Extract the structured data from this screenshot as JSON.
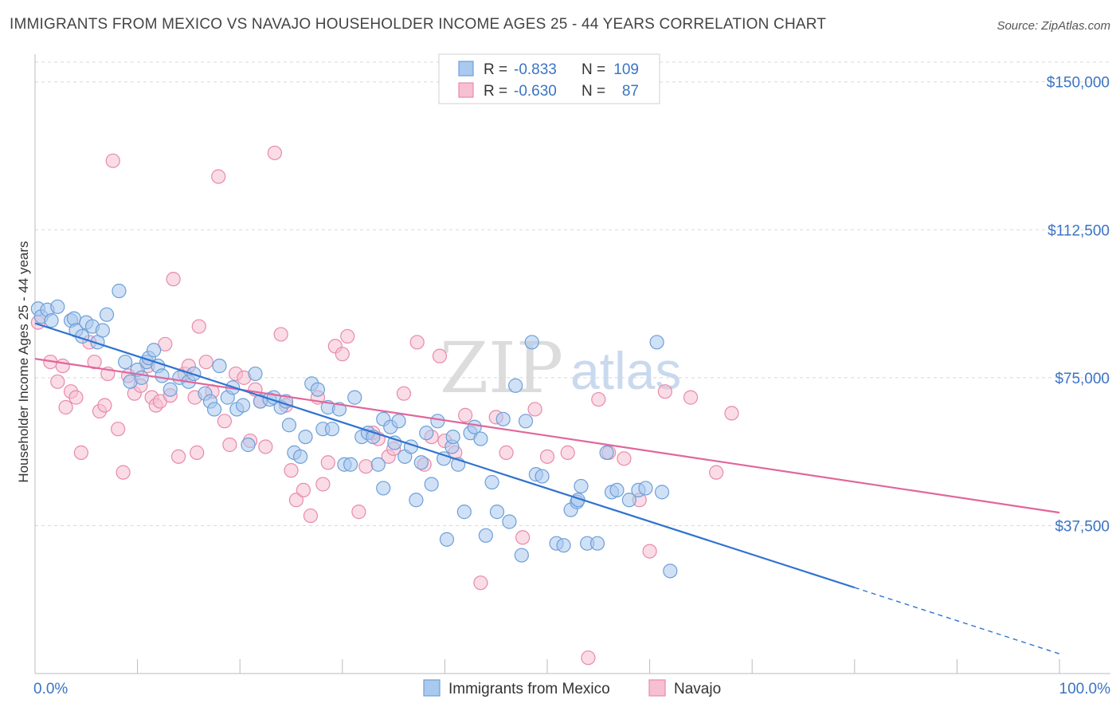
{
  "title": "IMMIGRANTS FROM MEXICO VS NAVAJO HOUSEHOLDER INCOME AGES 25 - 44 YEARS CORRELATION CHART",
  "source": "Source: ZipAtlas.com",
  "watermark": {
    "zip": "ZIP",
    "atlas": "atlas"
  },
  "legend": {
    "r_label": "R =",
    "n_label": "N =",
    "rows": [
      {
        "r": "-0.833",
        "n": "109"
      },
      {
        "r": "-0.630",
        "n": "87"
      }
    ]
  },
  "colors": {
    "blue_fill": "#a9c9ee",
    "blue_stroke": "#6d9fd8",
    "blue_line": "#2f73d0",
    "pink_fill": "#f6c0d2",
    "pink_stroke": "#e88aaa",
    "pink_line": "#e0679a",
    "grid": "#d8d8d8",
    "tick_text": "#3a74c4"
  },
  "chart_data": {
    "type": "scatter",
    "title": "IMMIGRANTS FROM MEXICO VS NAVAJO HOUSEHOLDER INCOME AGES 25 - 44 YEARS CORRELATION CHART",
    "xlabel": "",
    "ylabel": "Householder Income Ages 25 - 44 years",
    "xlim": [
      0,
      100
    ],
    "ylim": [
      0,
      155000
    ],
    "x_tick_labels": [
      "0.0%",
      "100.0%"
    ],
    "y_ticks": [
      37500,
      75000,
      112500,
      150000
    ],
    "y_tick_labels": [
      "$37,500",
      "$75,000",
      "$112,500",
      "$150,000"
    ],
    "grid": true,
    "legend_position": "top-center",
    "series": [
      {
        "name": "Immigrants from Mexico",
        "r": -0.833,
        "n": 109,
        "trend": {
          "x0": 0,
          "y0": 88800,
          "x1": 80,
          "y1": 21800,
          "dashed_to_x": 100,
          "dashed_to_y": 5000
        },
        "points": [
          [
            0.3,
            92500
          ],
          [
            0.6,
            90500
          ],
          [
            1.2,
            92200
          ],
          [
            1.6,
            89500
          ],
          [
            2.2,
            93000
          ],
          [
            3.5,
            89500
          ],
          [
            3.8,
            90000
          ],
          [
            4.0,
            87000
          ],
          [
            4.6,
            85500
          ],
          [
            5.0,
            89000
          ],
          [
            5.6,
            88000
          ],
          [
            6.1,
            84000
          ],
          [
            6.6,
            87000
          ],
          [
            7.0,
            91000
          ],
          [
            8.2,
            97000
          ],
          [
            8.8,
            79000
          ],
          [
            9.3,
            74000
          ],
          [
            10.0,
            77000
          ],
          [
            10.4,
            75000
          ],
          [
            10.9,
            79000
          ],
          [
            11.1,
            80000
          ],
          [
            11.6,
            82000
          ],
          [
            12.0,
            78000
          ],
          [
            12.4,
            75500
          ],
          [
            13.2,
            72000
          ],
          [
            14.1,
            75000
          ],
          [
            15.0,
            74000
          ],
          [
            15.5,
            76000
          ],
          [
            16.6,
            71000
          ],
          [
            17.1,
            69000
          ],
          [
            17.5,
            67000
          ],
          [
            18.0,
            78000
          ],
          [
            18.8,
            70000
          ],
          [
            19.3,
            72500
          ],
          [
            19.7,
            67000
          ],
          [
            20.3,
            68000
          ],
          [
            20.8,
            58000
          ],
          [
            21.5,
            76000
          ],
          [
            22.0,
            69000
          ],
          [
            22.9,
            69500
          ],
          [
            23.3,
            70000
          ],
          [
            24.0,
            67500
          ],
          [
            24.5,
            69000
          ],
          [
            24.8,
            63000
          ],
          [
            25.3,
            56000
          ],
          [
            25.9,
            55000
          ],
          [
            26.4,
            60000
          ],
          [
            27.0,
            73500
          ],
          [
            27.6,
            72000
          ],
          [
            28.1,
            62000
          ],
          [
            28.6,
            67500
          ],
          [
            29.0,
            62000
          ],
          [
            29.7,
            67000
          ],
          [
            30.2,
            53000
          ],
          [
            30.8,
            53000
          ],
          [
            31.2,
            70000
          ],
          [
            31.9,
            60000
          ],
          [
            32.5,
            61000
          ],
          [
            33.0,
            60000
          ],
          [
            33.5,
            53000
          ],
          [
            34.0,
            64500
          ],
          [
            34.7,
            62500
          ],
          [
            35.1,
            58500
          ],
          [
            35.5,
            64000
          ],
          [
            36.1,
            55000
          ],
          [
            36.7,
            57500
          ],
          [
            37.2,
            44000
          ],
          [
            37.7,
            53500
          ],
          [
            38.2,
            61000
          ],
          [
            38.7,
            48000
          ],
          [
            39.3,
            64000
          ],
          [
            39.9,
            54500
          ],
          [
            40.2,
            34000
          ],
          [
            40.7,
            57500
          ],
          [
            41.3,
            53000
          ],
          [
            41.9,
            41000
          ],
          [
            42.5,
            61000
          ],
          [
            42.9,
            62500
          ],
          [
            43.5,
            59500
          ],
          [
            44.0,
            35000
          ],
          [
            44.6,
            48500
          ],
          [
            45.1,
            41000
          ],
          [
            45.7,
            64500
          ],
          [
            46.3,
            38500
          ],
          [
            46.9,
            73000
          ],
          [
            47.5,
            30000
          ],
          [
            47.9,
            64000
          ],
          [
            48.5,
            84000
          ],
          [
            48.9,
            50500
          ],
          [
            49.5,
            50000
          ],
          [
            50.9,
            33000
          ],
          [
            51.6,
            32500
          ],
          [
            52.3,
            41500
          ],
          [
            52.9,
            43500
          ],
          [
            53.3,
            47500
          ],
          [
            53.9,
            33000
          ],
          [
            54.9,
            33000
          ],
          [
            55.8,
            56000
          ],
          [
            56.3,
            46000
          ],
          [
            56.8,
            46500
          ],
          [
            58.0,
            44000
          ],
          [
            58.9,
            46500
          ],
          [
            59.6,
            47000
          ],
          [
            60.7,
            84000
          ],
          [
            61.2,
            46000
          ],
          [
            62.0,
            26000
          ],
          [
            40.8,
            60000
          ],
          [
            34.0,
            47000
          ],
          [
            53.0,
            44000
          ]
        ]
      },
      {
        "name": "Navajo",
        "r": -0.63,
        "n": 87,
        "trend": {
          "x0": 0,
          "y0": 79800,
          "x1": 100,
          "y1": 40800
        },
        "points": [
          [
            0.3,
            89000
          ],
          [
            1.5,
            79000
          ],
          [
            2.2,
            74000
          ],
          [
            2.7,
            78000
          ],
          [
            3.0,
            67500
          ],
          [
            3.5,
            71500
          ],
          [
            4.0,
            70000
          ],
          [
            4.5,
            56000
          ],
          [
            5.3,
            84000
          ],
          [
            5.8,
            79000
          ],
          [
            6.3,
            66500
          ],
          [
            6.8,
            68000
          ],
          [
            7.1,
            76000
          ],
          [
            7.6,
            130000
          ],
          [
            8.1,
            62000
          ],
          [
            8.6,
            51000
          ],
          [
            9.1,
            75500
          ],
          [
            9.7,
            71000
          ],
          [
            10.3,
            73000
          ],
          [
            11.0,
            78000
          ],
          [
            11.4,
            70000
          ],
          [
            11.8,
            68000
          ],
          [
            12.2,
            69000
          ],
          [
            12.7,
            83500
          ],
          [
            13.2,
            70500
          ],
          [
            13.5,
            100000
          ],
          [
            14.0,
            55000
          ],
          [
            14.6,
            76000
          ],
          [
            15.0,
            78000
          ],
          [
            15.6,
            70000
          ],
          [
            15.8,
            56000
          ],
          [
            16.0,
            88000
          ],
          [
            16.7,
            79000
          ],
          [
            17.3,
            71500
          ],
          [
            17.9,
            126000
          ],
          [
            18.5,
            64000
          ],
          [
            19.0,
            58000
          ],
          [
            19.6,
            76000
          ],
          [
            20.4,
            75000
          ],
          [
            21.0,
            59000
          ],
          [
            21.5,
            72000
          ],
          [
            22.0,
            69000
          ],
          [
            22.5,
            57500
          ],
          [
            23.4,
            132000
          ],
          [
            24.0,
            86000
          ],
          [
            24.5,
            68000
          ],
          [
            25.0,
            51500
          ],
          [
            25.5,
            44000
          ],
          [
            26.2,
            46500
          ],
          [
            26.9,
            40000
          ],
          [
            27.6,
            70000
          ],
          [
            28.1,
            48000
          ],
          [
            28.6,
            53500
          ],
          [
            29.3,
            83000
          ],
          [
            30.0,
            81000
          ],
          [
            30.5,
            85500
          ],
          [
            31.6,
            41000
          ],
          [
            32.3,
            52500
          ],
          [
            33.0,
            61000
          ],
          [
            33.5,
            59500
          ],
          [
            34.5,
            55000
          ],
          [
            35.0,
            57000
          ],
          [
            36.0,
            71000
          ],
          [
            37.3,
            84000
          ],
          [
            38.0,
            53000
          ],
          [
            38.7,
            60000
          ],
          [
            39.5,
            80500
          ],
          [
            40.0,
            59000
          ],
          [
            41.0,
            56000
          ],
          [
            42.0,
            65500
          ],
          [
            43.5,
            23000
          ],
          [
            45.0,
            65000
          ],
          [
            46.0,
            56000
          ],
          [
            47.6,
            34500
          ],
          [
            48.8,
            67000
          ],
          [
            50.0,
            55000
          ],
          [
            52.0,
            56000
          ],
          [
            54.0,
            4000
          ],
          [
            55.0,
            69500
          ],
          [
            56.0,
            56000
          ],
          [
            57.5,
            54500
          ],
          [
            59.0,
            44000
          ],
          [
            60.0,
            31000
          ],
          [
            61.5,
            71500
          ],
          [
            64.0,
            70000
          ],
          [
            66.5,
            51000
          ],
          [
            68.0,
            66000
          ]
        ]
      }
    ]
  },
  "bottom_legend": [
    {
      "label": "Immigrants from Mexico"
    },
    {
      "label": "Navajo"
    }
  ]
}
